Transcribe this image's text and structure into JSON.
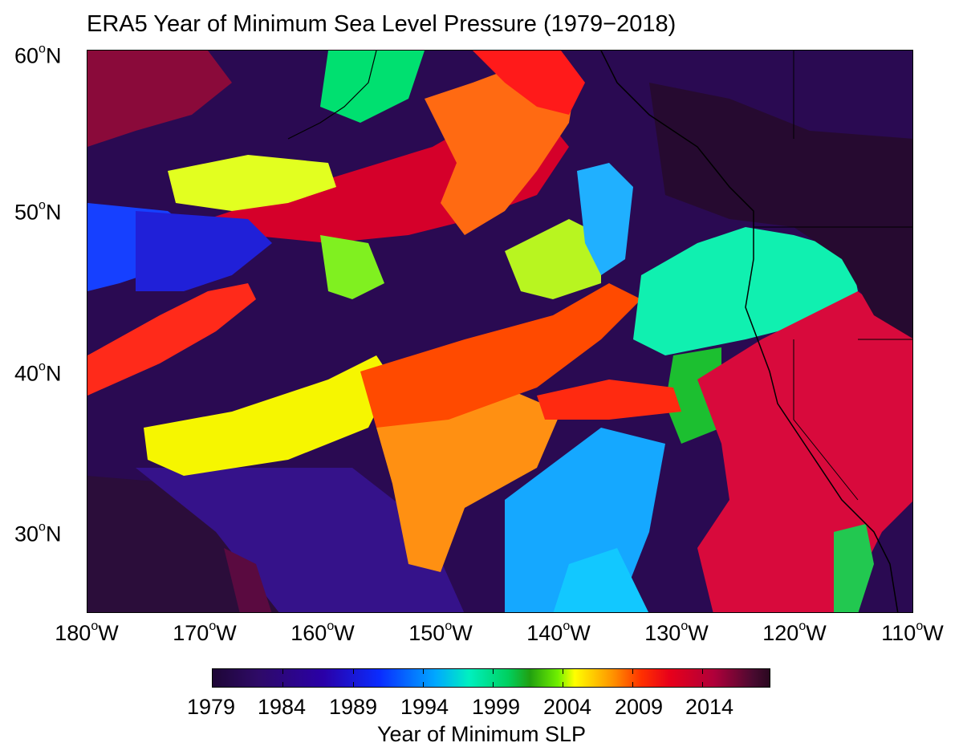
{
  "title": "ERA5 Year of Minimum Sea Level Pressure (1979−2018)",
  "lat_labels": [
    {
      "deg": "60",
      "hemi": "N"
    },
    {
      "deg": "50",
      "hemi": "N"
    },
    {
      "deg": "40",
      "hemi": "N"
    },
    {
      "deg": "30",
      "hemi": "N"
    }
  ],
  "lon_labels": [
    {
      "deg": "180",
      "hemi": "W"
    },
    {
      "deg": "170",
      "hemi": "W"
    },
    {
      "deg": "160",
      "hemi": "W"
    },
    {
      "deg": "150",
      "hemi": "W"
    },
    {
      "deg": "140",
      "hemi": "W"
    },
    {
      "deg": "130",
      "hemi": "W"
    },
    {
      "deg": "120",
      "hemi": "W"
    },
    {
      "deg": "110",
      "hemi": "W"
    }
  ],
  "colorbar": {
    "tick_labels": [
      "1979",
      "1984",
      "1989",
      "1994",
      "1999",
      "2004",
      "2009",
      "2014"
    ],
    "title": "Year of Minimum SLP"
  }
}
